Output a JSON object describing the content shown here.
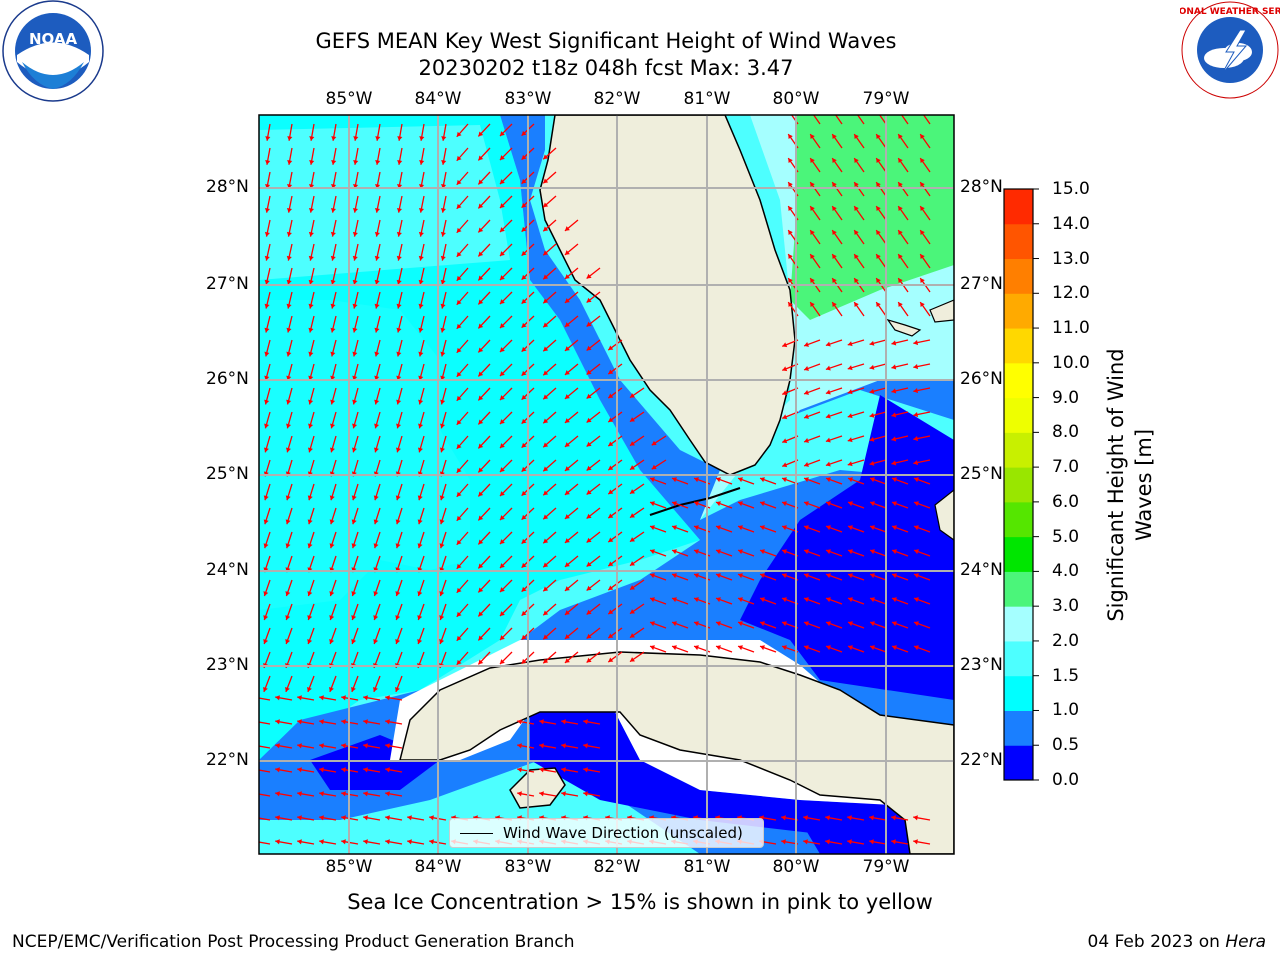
{
  "title_line1": "GEFS MEAN Key West Significant Height of Wind Waves",
  "title_line2": "20230202 t18z 048h fcst   Max: 3.47",
  "lon_labels": [
    "85°W",
    "84°W",
    "83°W",
    "82°W",
    "81°W",
    "80°W",
    "79°W"
  ],
  "lat_labels": [
    "28°N",
    "27°N",
    "26°N",
    "25°N",
    "24°N",
    "23°N",
    "22°N"
  ],
  "colorbar": {
    "label_line1": "Significant Height of Wind",
    "label_line2": "Waves [m]",
    "ticks": [
      "0.0",
      "0.5",
      "1.0",
      "1.5",
      "2.0",
      "3.0",
      "4.0",
      "5.0",
      "6.0",
      "7.0",
      "8.0",
      "9.0",
      "10.0",
      "11.0",
      "12.0",
      "13.0",
      "14.0",
      "15.0"
    ],
    "colors": [
      "#0000ff",
      "#1a7fff",
      "#00ffff",
      "#4dffff",
      "#a5ffff",
      "#4bf57a",
      "#00e600",
      "#55e600",
      "#99e600",
      "#c8f000",
      "#eeff00",
      "#ffff00",
      "#ffd800",
      "#ffaa00",
      "#ff7f00",
      "#ff5500",
      "#ff2a00"
    ]
  },
  "legend_label": "Wind Wave Direction (unscaled)",
  "sea_ice_note": "Sea Ice Concentration > 15% is shown in pink to yellow",
  "footer_left": "NCEP/EMC/Verification Post Processing Product Generation Branch",
  "footer_date": "04 Feb 2023 on ",
  "footer_host": "Hera",
  "logo_left": "NOAA",
  "logo_right": "NATIONAL WEATHER SERVICE"
}
